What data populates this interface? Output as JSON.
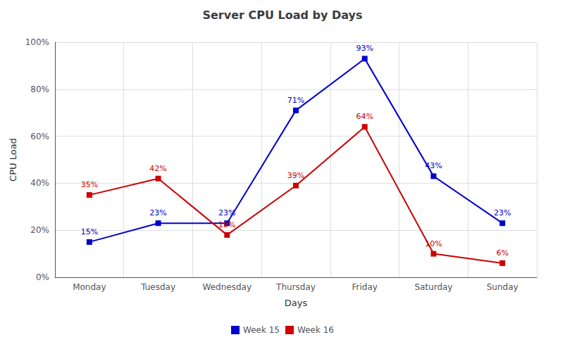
{
  "chart_data": {
    "type": "line",
    "title": "Server CPU Load by Days",
    "xlabel": "Days",
    "ylabel": "CPU Load",
    "categories": [
      "Monday",
      "Tuesday",
      "Wednesday",
      "Thursday",
      "Friday",
      "Saturday",
      "Sunday"
    ],
    "series": [
      {
        "name": "Week 15",
        "color": "#0000cc",
        "marker": "square",
        "values": [
          15,
          23,
          23,
          71,
          93,
          43,
          23
        ],
        "value_labels": [
          "15%",
          "23%",
          "23%",
          "71%",
          "93%",
          "43%",
          "23%"
        ]
      },
      {
        "name": "Week 16",
        "color": "#cc0000",
        "marker": "square",
        "values": [
          35,
          42,
          18,
          39,
          64,
          10,
          6
        ],
        "value_labels": [
          "35%",
          "42%",
          "18%",
          "39%",
          "64%",
          "10%",
          "6%"
        ]
      }
    ],
    "ylim": [
      0,
      100
    ],
    "yticks": [
      {
        "value": 0,
        "label": "0%"
      },
      {
        "value": 20,
        "label": "20%"
      },
      {
        "value": 40,
        "label": "40%"
      },
      {
        "value": 60,
        "label": "60%"
      },
      {
        "value": 80,
        "label": "80%"
      },
      {
        "value": 100,
        "label": "100%"
      }
    ],
    "grid": true,
    "legend": "bottom",
    "data_labels": true
  }
}
